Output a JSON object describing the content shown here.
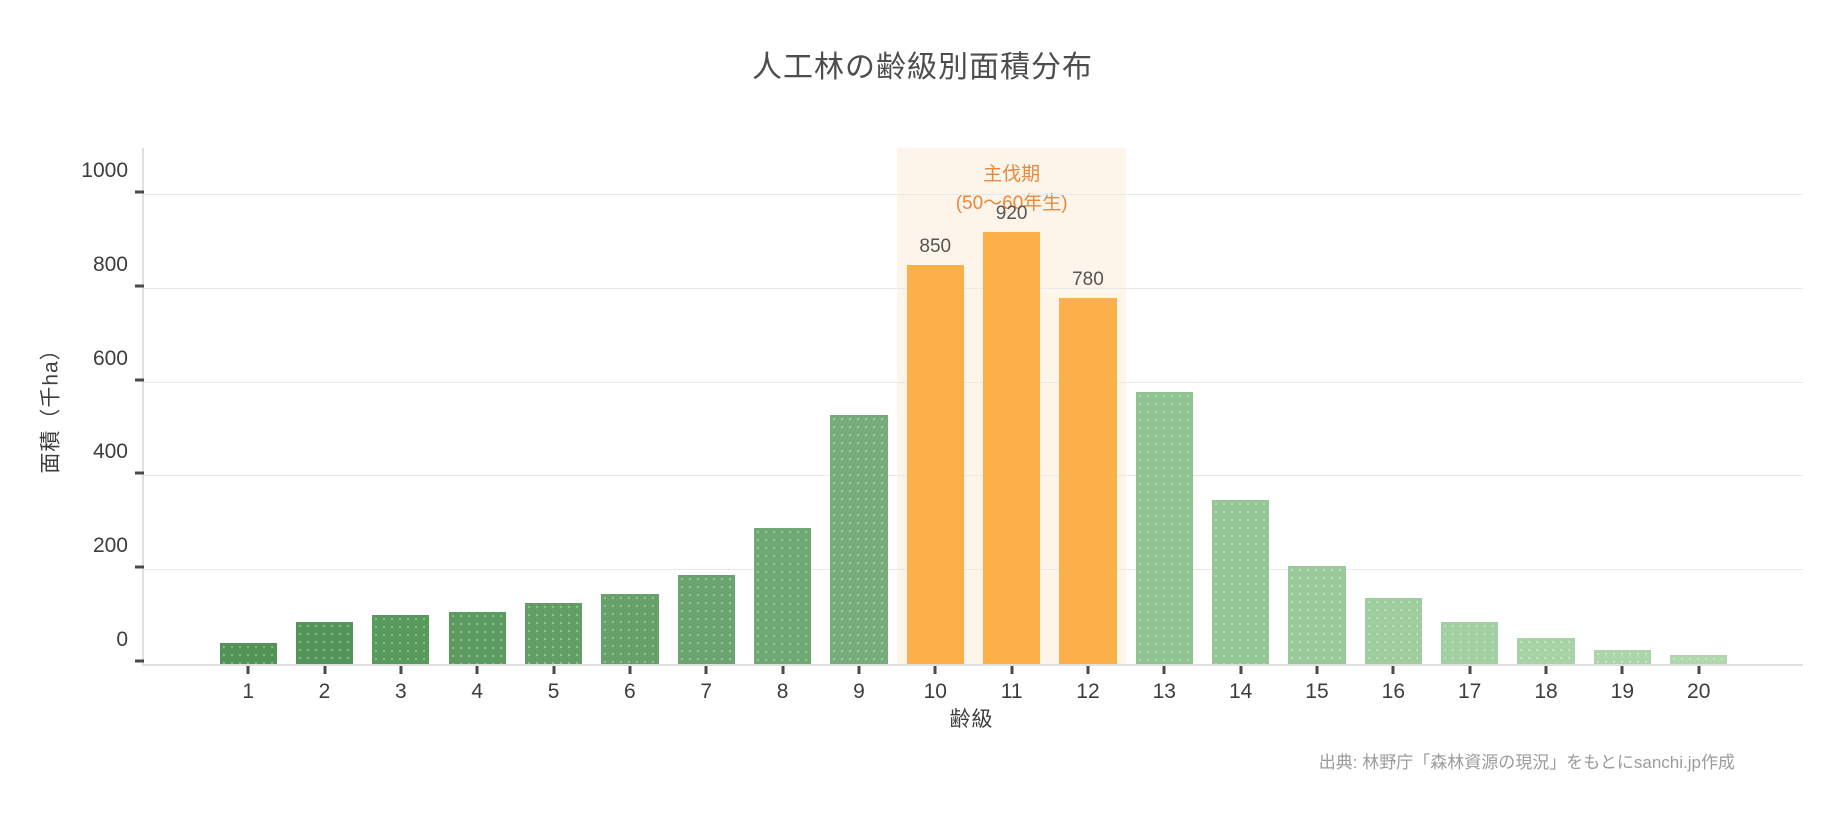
{
  "title": "人工林の齢級別面積分布",
  "source_note": "出典: 林野庁「森林資源の現況」をもとにsanchi.jp作成",
  "chart_data": {
    "type": "bar",
    "title": "人工林の齢級別面積分布",
    "xlabel": "齢級",
    "ylabel": "面積（千ha）",
    "categories": [
      "1",
      "2",
      "3",
      "4",
      "5",
      "6",
      "7",
      "8",
      "9",
      "10",
      "11",
      "12",
      "13",
      "14",
      "15",
      "16",
      "17",
      "18",
      "19",
      "20"
    ],
    "values": [
      45,
      90,
      105,
      110,
      130,
      150,
      190,
      290,
      530,
      850,
      920,
      780,
      580,
      350,
      210,
      140,
      90,
      55,
      30,
      20
    ],
    "data_labels": [
      null,
      null,
      null,
      null,
      null,
      null,
      null,
      null,
      null,
      "850",
      "920",
      "780",
      null,
      null,
      null,
      null,
      null,
      null,
      null,
      null
    ],
    "bar_colors": [
      "#519456",
      "#549659",
      "#58995c",
      "#5c9b60",
      "#609e64",
      "#65a169",
      "#6aa46e",
      "#70a873",
      "#77ad7a",
      "#fbb04a",
      "#fbb04a",
      "#fbb04a",
      "#8fc391",
      "#94c795",
      "#9aca9a",
      "#9fcd9f",
      "#a3d0a3",
      "#a7d3a7",
      "#aad5aa",
      "#aed7ad"
    ],
    "ylim": [
      0,
      1100
    ],
    "yticks": [
      0,
      200,
      400,
      600,
      800,
      1000
    ],
    "grid": true,
    "legend": null,
    "highlight_band": {
      "start_index": 9,
      "end_index": 11,
      "label_lines": [
        "主伐期",
        "(50〜60年生)"
      ],
      "band_color": "#fdf4ea",
      "text_color": "#e8883c"
    }
  },
  "colors": {
    "background": "#ffffff",
    "title_text": "#4d4d4d",
    "axis_text": "#3d3d3d",
    "gridline": "#e9e9e9",
    "axis_line": "#e0e0e0",
    "tick_mark": "#4a4a4a",
    "data_label_text": "#555555",
    "source_text": "#9b9b9b",
    "orange_bar": "#fbb04a"
  }
}
